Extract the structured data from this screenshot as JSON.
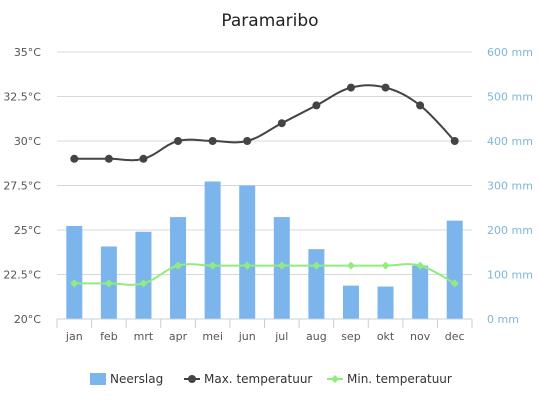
{
  "chart_data": {
    "type": "bar+line",
    "title": "Paramaribo",
    "categories": [
      "jan",
      "feb",
      "mrt",
      "apr",
      "mei",
      "jun",
      "jul",
      "aug",
      "sep",
      "okt",
      "nov",
      "dec"
    ],
    "y_left": {
      "range": [
        20,
        35
      ],
      "ticks": [
        20,
        22.5,
        25,
        27.5,
        30,
        32.5,
        35
      ],
      "tick_labels": [
        "20°C",
        "22.5°C",
        "25°C",
        "27.5°C",
        "30°C",
        "32.5°C",
        "35°C"
      ]
    },
    "y_right": {
      "range": [
        0,
        600
      ],
      "ticks": [
        0,
        100,
        200,
        300,
        400,
        500,
        600
      ],
      "tick_labels": [
        "0 mm",
        "100 mm",
        "200 mm",
        "300 mm",
        "400 mm",
        "500 mm",
        "600 mm"
      ]
    },
    "grid": true,
    "legend_position": "bottom",
    "series": [
      {
        "name": "Neerslag",
        "type": "bar",
        "axis": "right",
        "color": "#7cb5ec",
        "values": [
          209,
          163,
          196,
          229,
          309,
          300,
          229,
          157,
          75,
          73,
          120,
          221
        ]
      },
      {
        "name": "Max. temperatuur",
        "type": "line",
        "axis": "left",
        "color": "#434348",
        "values": [
          29,
          29,
          29,
          30,
          30,
          30,
          31,
          32,
          33,
          33,
          32,
          30
        ]
      },
      {
        "name": "Min. temperatuur",
        "type": "line",
        "axis": "left",
        "color": "#90ed7d",
        "values": [
          22,
          22,
          22,
          23,
          23,
          23,
          23,
          23,
          23,
          23,
          23,
          22
        ]
      }
    ]
  }
}
